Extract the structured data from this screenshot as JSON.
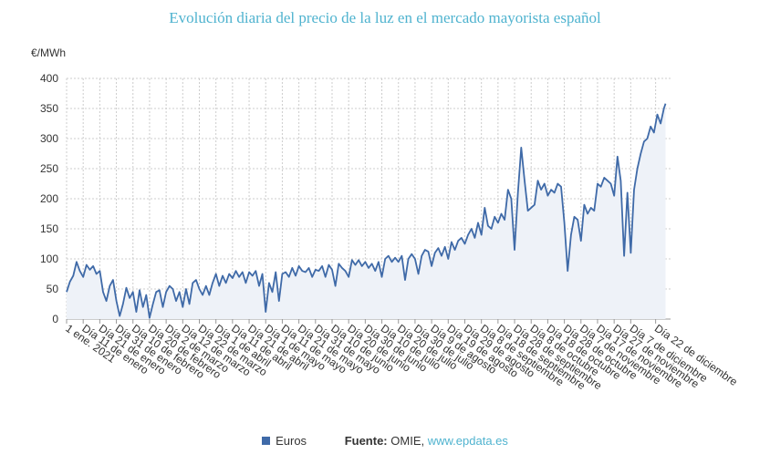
{
  "chart_data": {
    "type": "area",
    "title": "Evolución diaria del precio de la luz en el mercado mayorista español",
    "ylabel": "€/MWh",
    "ylim": [
      0,
      400
    ],
    "yticks": [
      "0",
      "50",
      "100",
      "150",
      "200",
      "250",
      "300",
      "350",
      "400"
    ],
    "grid": true,
    "x_start": "2021-01-01",
    "x_end": "2021-12-31",
    "x_tick_labels": [
      "1 ene. 2021",
      "Día 11 de enero",
      "Día 21 de enero",
      "Día 31 de enero",
      "Día 10 de febrero",
      "Día 20 de febrero",
      "Día 2 de marzo",
      "Día 12 de marzo",
      "Día 22 de marzo",
      "Día 1 de abril",
      "Día 11 de abril",
      "Día 21 de abril",
      "Día 1 de mayo",
      "Día 11 de mayo",
      "Día 21 de mayo",
      "Día 31 de mayo",
      "Día 10 de junio",
      "Día 20 de junio",
      "Día 30 de junio",
      "Día 10 de julio",
      "Día 20 de julio",
      "Día 30 de julio",
      "Día 9 de agosto",
      "Día 19 de agosto",
      "Día 29 de agosto",
      "Día 8 de septiembre",
      "Día 18 de septiembre",
      "Día 28 de septiembre",
      "Día 8 de octubre",
      "Día 18 de octubre",
      "Día 28 de octubre",
      "Día 7 de noviembre",
      "Día 17 de noviembre",
      "Día 27 de noviembre",
      "Día 7 de diciembre",
      "Día 22 de diciembre"
    ],
    "x_tick_dates": [
      "2021-01-01",
      "2021-01-11",
      "2021-01-21",
      "2021-01-31",
      "2021-02-10",
      "2021-02-20",
      "2021-03-02",
      "2021-03-12",
      "2021-03-22",
      "2021-04-01",
      "2021-04-11",
      "2021-04-21",
      "2021-05-01",
      "2021-05-11",
      "2021-05-21",
      "2021-05-31",
      "2021-06-10",
      "2021-06-20",
      "2021-06-30",
      "2021-07-10",
      "2021-07-20",
      "2021-07-30",
      "2021-08-09",
      "2021-08-19",
      "2021-08-29",
      "2021-09-08",
      "2021-09-18",
      "2021-09-28",
      "2021-10-08",
      "2021-10-18",
      "2021-10-28",
      "2021-11-07",
      "2021-11-17",
      "2021-11-27",
      "2021-12-07",
      "2021-12-22"
    ],
    "series": [
      {
        "name": "Euros",
        "color": "#3f6aa8",
        "points": [
          [
            "2021-01-01",
            45
          ],
          [
            "2021-01-03",
            62
          ],
          [
            "2021-01-05",
            72
          ],
          [
            "2021-01-07",
            95
          ],
          [
            "2021-01-09",
            80
          ],
          [
            "2021-01-11",
            70
          ],
          [
            "2021-01-13",
            90
          ],
          [
            "2021-01-15",
            82
          ],
          [
            "2021-01-17",
            88
          ],
          [
            "2021-01-19",
            75
          ],
          [
            "2021-01-21",
            80
          ],
          [
            "2021-01-23",
            45
          ],
          [
            "2021-01-25",
            30
          ],
          [
            "2021-01-27",
            55
          ],
          [
            "2021-01-29",
            65
          ],
          [
            "2021-01-31",
            30
          ],
          [
            "2021-02-02",
            5
          ],
          [
            "2021-02-04",
            25
          ],
          [
            "2021-02-06",
            52
          ],
          [
            "2021-02-08",
            35
          ],
          [
            "2021-02-10",
            45
          ],
          [
            "2021-02-12",
            12
          ],
          [
            "2021-02-14",
            48
          ],
          [
            "2021-02-16",
            20
          ],
          [
            "2021-02-18",
            40
          ],
          [
            "2021-02-20",
            2
          ],
          [
            "2021-02-22",
            25
          ],
          [
            "2021-02-24",
            45
          ],
          [
            "2021-02-26",
            48
          ],
          [
            "2021-02-28",
            20
          ],
          [
            "2021-03-02",
            45
          ],
          [
            "2021-03-04",
            55
          ],
          [
            "2021-03-06",
            50
          ],
          [
            "2021-03-08",
            30
          ],
          [
            "2021-03-10",
            45
          ],
          [
            "2021-03-12",
            20
          ],
          [
            "2021-03-14",
            50
          ],
          [
            "2021-03-16",
            25
          ],
          [
            "2021-03-18",
            60
          ],
          [
            "2021-03-20",
            65
          ],
          [
            "2021-03-22",
            50
          ],
          [
            "2021-03-24",
            40
          ],
          [
            "2021-03-26",
            55
          ],
          [
            "2021-03-28",
            40
          ],
          [
            "2021-03-30",
            60
          ],
          [
            "2021-04-01",
            75
          ],
          [
            "2021-04-03",
            55
          ],
          [
            "2021-04-05",
            72
          ],
          [
            "2021-04-07",
            60
          ],
          [
            "2021-04-09",
            75
          ],
          [
            "2021-04-11",
            68
          ],
          [
            "2021-04-13",
            80
          ],
          [
            "2021-04-15",
            70
          ],
          [
            "2021-04-17",
            78
          ],
          [
            "2021-04-19",
            60
          ],
          [
            "2021-04-21",
            78
          ],
          [
            "2021-04-23",
            72
          ],
          [
            "2021-04-25",
            80
          ],
          [
            "2021-04-27",
            55
          ],
          [
            "2021-04-29",
            75
          ],
          [
            "2021-05-01",
            12
          ],
          [
            "2021-05-03",
            60
          ],
          [
            "2021-05-05",
            45
          ],
          [
            "2021-05-07",
            78
          ],
          [
            "2021-05-09",
            30
          ],
          [
            "2021-05-11",
            75
          ],
          [
            "2021-05-13",
            78
          ],
          [
            "2021-05-15",
            70
          ],
          [
            "2021-05-17",
            85
          ],
          [
            "2021-05-19",
            72
          ],
          [
            "2021-05-21",
            88
          ],
          [
            "2021-05-23",
            80
          ],
          [
            "2021-05-25",
            78
          ],
          [
            "2021-05-27",
            85
          ],
          [
            "2021-05-29",
            70
          ],
          [
            "2021-05-31",
            82
          ],
          [
            "2021-06-02",
            80
          ],
          [
            "2021-06-04",
            88
          ],
          [
            "2021-06-06",
            70
          ],
          [
            "2021-06-08",
            90
          ],
          [
            "2021-06-10",
            82
          ],
          [
            "2021-06-12",
            55
          ],
          [
            "2021-06-14",
            92
          ],
          [
            "2021-06-16",
            85
          ],
          [
            "2021-06-18",
            80
          ],
          [
            "2021-06-20",
            70
          ],
          [
            "2021-06-22",
            98
          ],
          [
            "2021-06-24",
            90
          ],
          [
            "2021-06-26",
            98
          ],
          [
            "2021-06-28",
            88
          ],
          [
            "2021-06-30",
            95
          ],
          [
            "2021-07-02",
            85
          ],
          [
            "2021-07-04",
            92
          ],
          [
            "2021-07-06",
            80
          ],
          [
            "2021-07-08",
            95
          ],
          [
            "2021-07-10",
            70
          ],
          [
            "2021-07-12",
            100
          ],
          [
            "2021-07-14",
            105
          ],
          [
            "2021-07-16",
            95
          ],
          [
            "2021-07-18",
            102
          ],
          [
            "2021-07-20",
            95
          ],
          [
            "2021-07-22",
            105
          ],
          [
            "2021-07-24",
            65
          ],
          [
            "2021-07-26",
            100
          ],
          [
            "2021-07-28",
            108
          ],
          [
            "2021-07-30",
            100
          ],
          [
            "2021-08-01",
            75
          ],
          [
            "2021-08-03",
            105
          ],
          [
            "2021-08-05",
            115
          ],
          [
            "2021-08-07",
            112
          ],
          [
            "2021-08-09",
            88
          ],
          [
            "2021-08-11",
            110
          ],
          [
            "2021-08-13",
            118
          ],
          [
            "2021-08-15",
            105
          ],
          [
            "2021-08-17",
            120
          ],
          [
            "2021-08-19",
            100
          ],
          [
            "2021-08-21",
            128
          ],
          [
            "2021-08-23",
            115
          ],
          [
            "2021-08-25",
            130
          ],
          [
            "2021-08-27",
            135
          ],
          [
            "2021-08-29",
            125
          ],
          [
            "2021-08-31",
            140
          ],
          [
            "2021-09-02",
            150
          ],
          [
            "2021-09-04",
            135
          ],
          [
            "2021-09-06",
            160
          ],
          [
            "2021-09-08",
            140
          ],
          [
            "2021-09-10",
            185
          ],
          [
            "2021-09-12",
            155
          ],
          [
            "2021-09-14",
            150
          ],
          [
            "2021-09-16",
            170
          ],
          [
            "2021-09-18",
            160
          ],
          [
            "2021-09-20",
            175
          ],
          [
            "2021-09-22",
            165
          ],
          [
            "2021-09-24",
            215
          ],
          [
            "2021-09-26",
            200
          ],
          [
            "2021-09-28",
            115
          ],
          [
            "2021-09-30",
            210
          ],
          [
            "2021-10-02",
            285
          ],
          [
            "2021-10-04",
            230
          ],
          [
            "2021-10-06",
            180
          ],
          [
            "2021-10-08",
            185
          ],
          [
            "2021-10-10",
            190
          ],
          [
            "2021-10-12",
            230
          ],
          [
            "2021-10-14",
            215
          ],
          [
            "2021-10-16",
            225
          ],
          [
            "2021-10-18",
            205
          ],
          [
            "2021-10-20",
            215
          ],
          [
            "2021-10-22",
            210
          ],
          [
            "2021-10-24",
            225
          ],
          [
            "2021-10-26",
            220
          ],
          [
            "2021-10-28",
            160
          ],
          [
            "2021-10-30",
            80
          ],
          [
            "2021-11-01",
            140
          ],
          [
            "2021-11-03",
            170
          ],
          [
            "2021-11-05",
            165
          ],
          [
            "2021-11-07",
            130
          ],
          [
            "2021-11-09",
            190
          ],
          [
            "2021-11-11",
            175
          ],
          [
            "2021-11-13",
            185
          ],
          [
            "2021-11-15",
            180
          ],
          [
            "2021-11-17",
            225
          ],
          [
            "2021-11-19",
            220
          ],
          [
            "2021-11-21",
            235
          ],
          [
            "2021-11-23",
            230
          ],
          [
            "2021-11-25",
            225
          ],
          [
            "2021-11-27",
            205
          ],
          [
            "2021-11-29",
            270
          ],
          [
            "2021-12-01",
            230
          ],
          [
            "2021-12-03",
            105
          ],
          [
            "2021-12-05",
            210
          ],
          [
            "2021-12-07",
            110
          ],
          [
            "2021-12-09",
            215
          ],
          [
            "2021-12-11",
            250
          ],
          [
            "2021-12-13",
            275
          ],
          [
            "2021-12-15",
            295
          ],
          [
            "2021-12-17",
            300
          ],
          [
            "2021-12-19",
            320
          ],
          [
            "2021-12-21",
            310
          ],
          [
            "2021-12-23",
            340
          ],
          [
            "2021-12-25",
            325
          ],
          [
            "2021-12-27",
            350
          ],
          [
            "2021-12-28",
            358
          ]
        ]
      }
    ]
  },
  "legend": {
    "series_label": "Euros",
    "source_label": "Fuente:",
    "source_name": "OMIE,",
    "source_link": "www.epdata.es"
  }
}
